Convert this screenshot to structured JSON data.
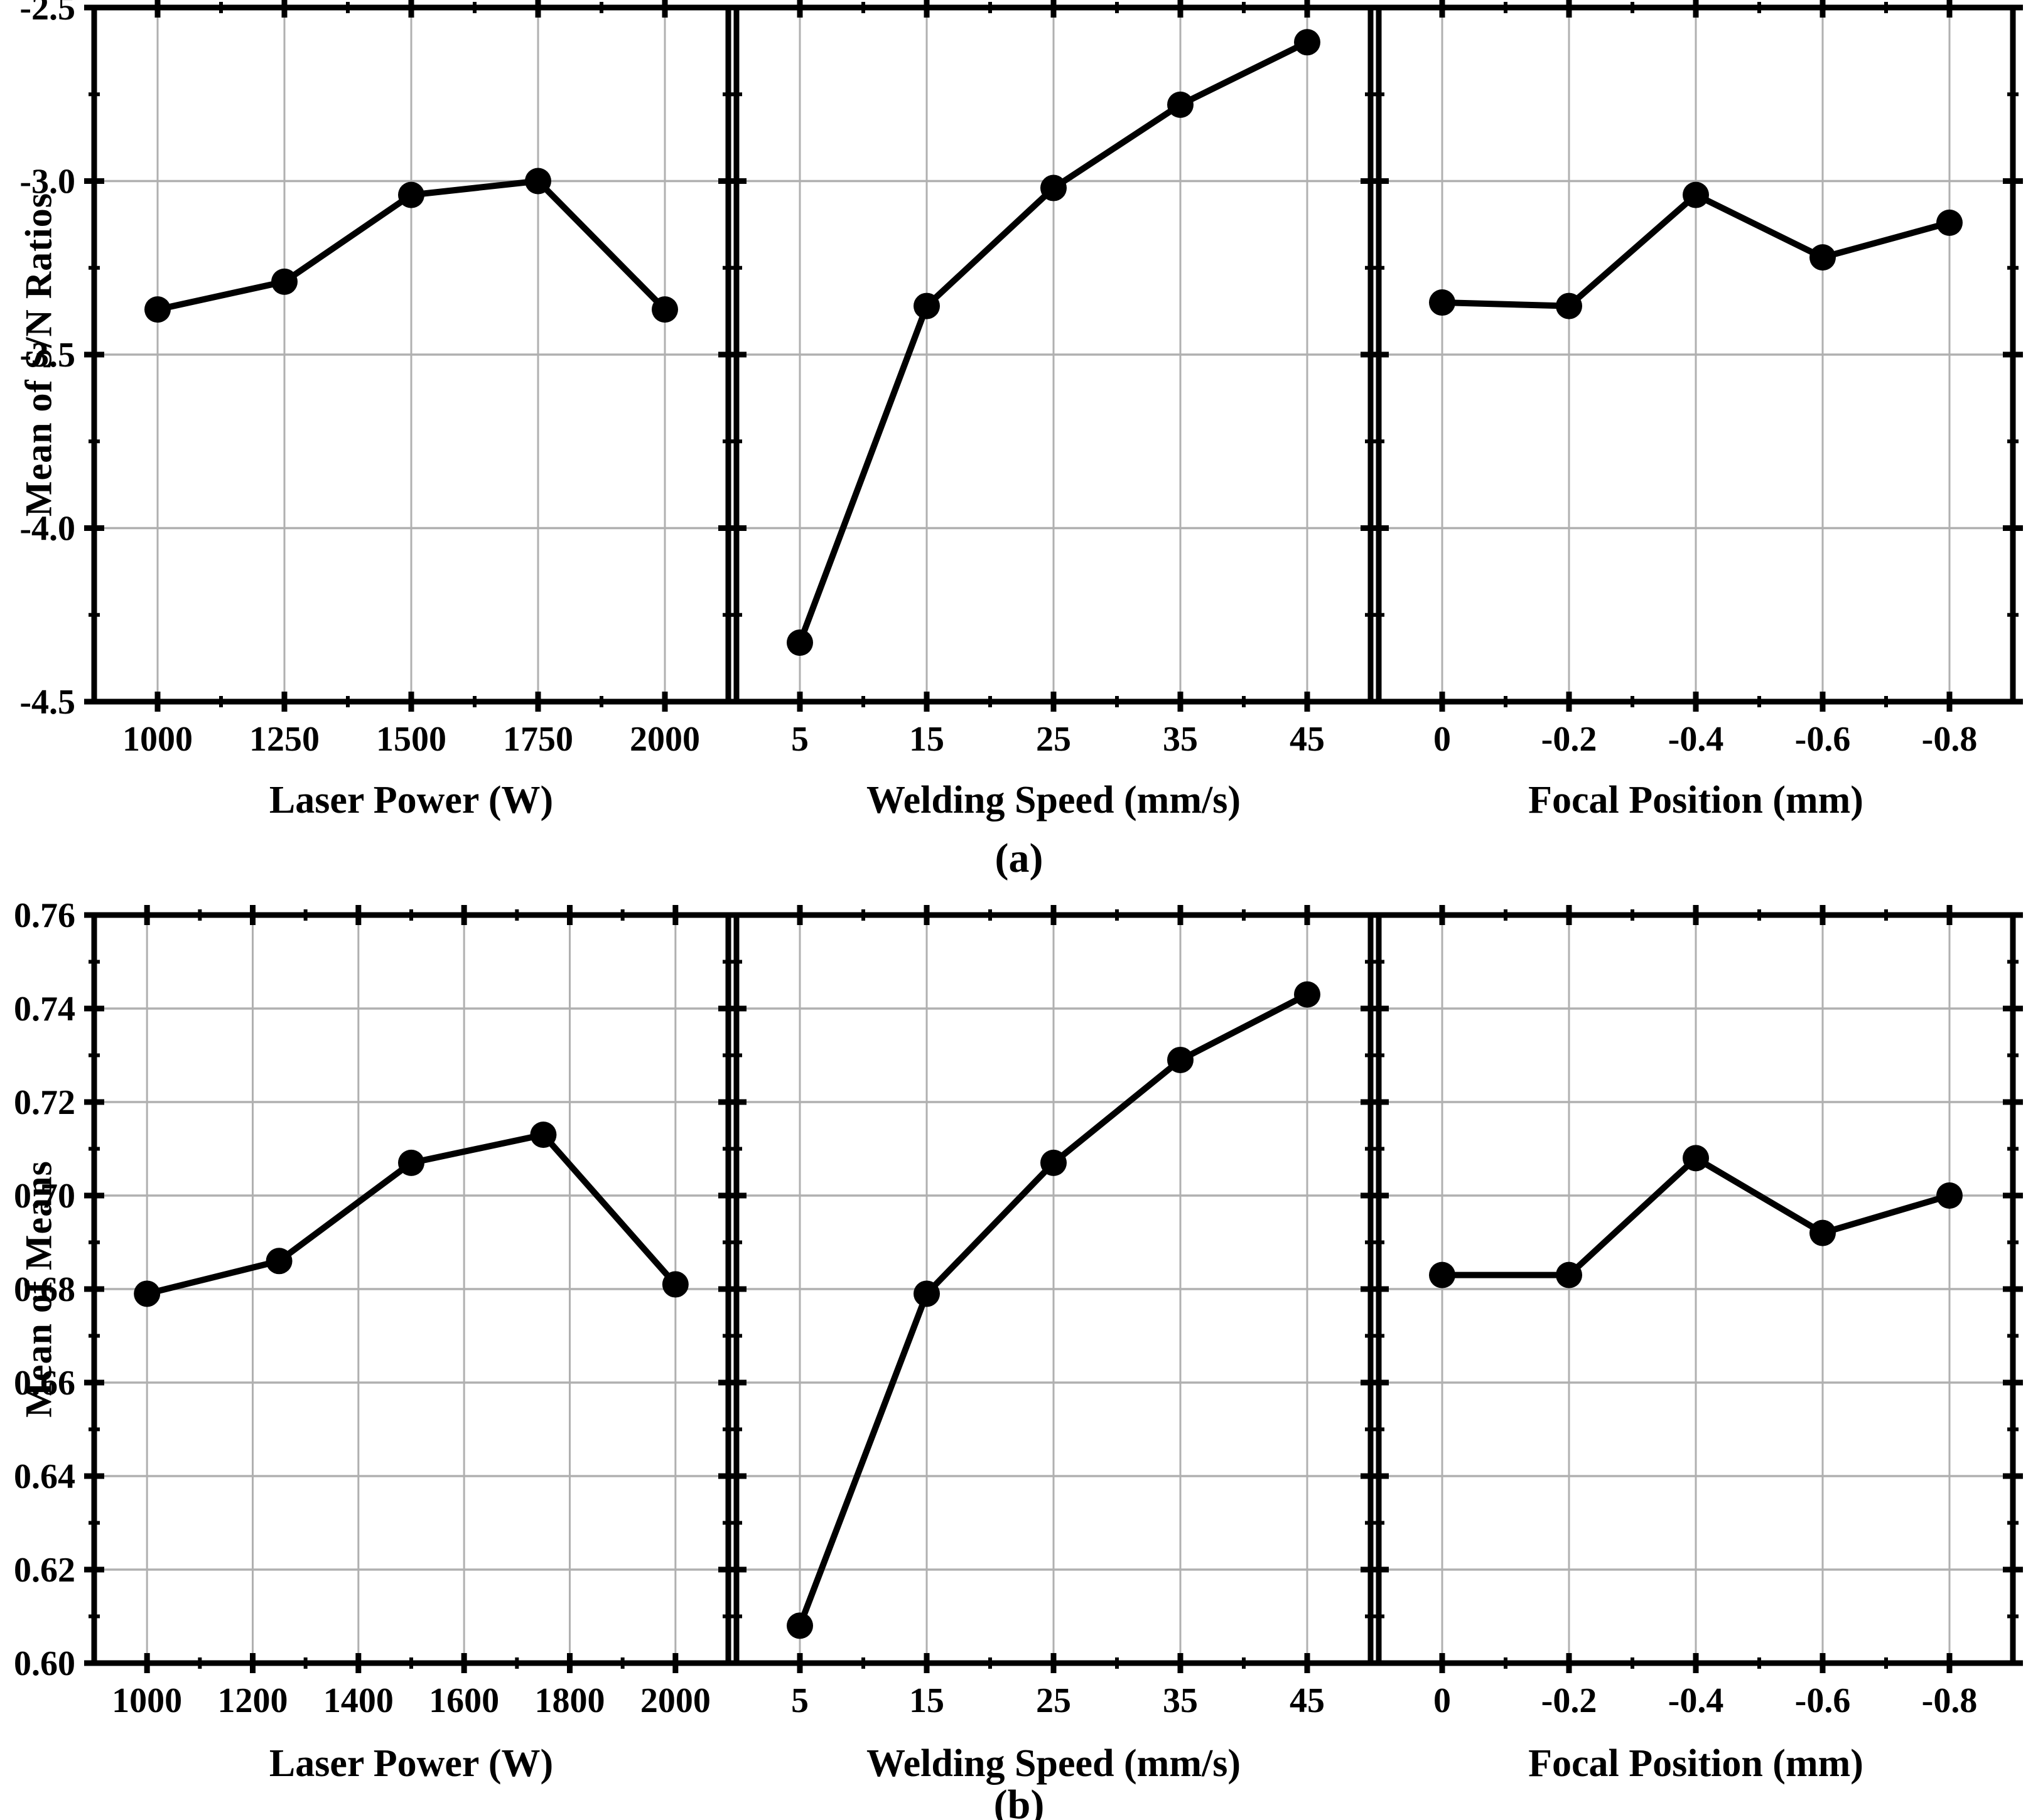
{
  "figure": {
    "background": "#ffffff",
    "data_color": "#000000",
    "grid_color": "#b0b0b0",
    "marker": "filled-circle",
    "font_style": "bold serif"
  },
  "chart_data": [
    {
      "type": "line",
      "figure_label": "a",
      "caption": {
        "open": "(",
        "letter": "a",
        "close": ")"
      },
      "ylabel": "Mean of S/N Ratios",
      "ylim": [
        -4.5,
        -2.5
      ],
      "grid": "major gridlines on, light gray",
      "legend": "none",
      "yticks": {
        "values": [
          -2.5,
          -3.0,
          -3.5,
          -4.0,
          -4.5
        ],
        "labels": [
          "-2.5",
          "-3.0",
          "-3.5",
          "-4.0",
          "-4.5"
        ]
      },
      "yminors": [
        -2.75,
        -3.25,
        -3.75,
        -4.25
      ],
      "panels": [
        {
          "xlabel": "Laser Power (W)",
          "xlim": [
            875,
            2125
          ],
          "xticks": {
            "values": [
              1000,
              1250,
              1500,
              1750,
              2000
            ],
            "labels": [
              "1000",
              "1250",
              "1500",
              "1750",
              "2000"
            ]
          },
          "xminors": [
            1125,
            1375,
            1625,
            1875
          ],
          "x": [
            1000,
            1250,
            1500,
            1750,
            2000
          ],
          "y": [
            -3.37,
            -3.29,
            -3.04,
            -3.0,
            -3.37
          ]
        },
        {
          "xlabel": "Welding Speed (mm/s)",
          "xlim": [
            0,
            50
          ],
          "xticks": {
            "values": [
              5,
              15,
              25,
              35,
              45
            ],
            "labels": [
              "5",
              "15",
              "25",
              "35",
              "45"
            ]
          },
          "xminors": [
            10,
            20,
            30,
            40
          ],
          "x": [
            5,
            15,
            25,
            35,
            45
          ],
          "y": [
            -4.33,
            -3.36,
            -3.02,
            -2.78,
            -2.6
          ]
        },
        {
          "xlabel": "Focal Position (mm)",
          "xlim": [
            0.1,
            -0.9
          ],
          "xticks": {
            "values": [
              0,
              -0.2,
              -0.4,
              -0.6,
              -0.8
            ],
            "labels": [
              "0",
              "-0.2",
              "-0.4",
              "-0.6",
              "-0.8"
            ]
          },
          "xminors": [
            -0.1,
            -0.3,
            -0.5,
            -0.7
          ],
          "x": [
            0,
            -0.2,
            -0.4,
            -0.6,
            -0.8
          ],
          "y": [
            -3.35,
            -3.36,
            -3.04,
            -3.22,
            -3.12
          ]
        }
      ]
    },
    {
      "type": "line",
      "figure_label": "b",
      "caption": {
        "open": "(",
        "letter": "b",
        "close": ")"
      },
      "ylabel": "Mean of Means",
      "ylim": [
        0.6,
        0.76
      ],
      "grid": "major gridlines on, light gray",
      "legend": "none",
      "yticks": {
        "values": [
          0.76,
          0.74,
          0.72,
          0.7,
          0.68,
          0.66,
          0.64,
          0.62,
          0.6
        ],
        "labels": [
          "0.76",
          "0.74",
          "0.72",
          "0.70",
          "0.68",
          "0.66",
          "0.64",
          "0.62",
          "0.60"
        ]
      },
      "yminors": [
        0.61,
        0.63,
        0.65,
        0.67,
        0.69,
        0.71,
        0.73,
        0.75
      ],
      "panels": [
        {
          "xlabel": "Laser Power (W)",
          "xlim": [
            900,
            2100
          ],
          "xticks": {
            "values": [
              1000,
              1200,
              1400,
              1600,
              1800,
              2000
            ],
            "labels": [
              "1000",
              "1200",
              "1400",
              "1600",
              "1800",
              "2000"
            ]
          },
          "xminors": [
            1100,
            1300,
            1500,
            1700,
            1900
          ],
          "x": [
            1000,
            1250,
            1500,
            1750,
            2000
          ],
          "y": [
            0.679,
            0.686,
            0.707,
            0.713,
            0.681
          ]
        },
        {
          "xlabel": "Welding Speed (mm/s)",
          "xlim": [
            0,
            50
          ],
          "xticks": {
            "values": [
              5,
              15,
              25,
              35,
              45
            ],
            "labels": [
              "5",
              "15",
              "25",
              "35",
              "45"
            ]
          },
          "xminors": [
            10,
            20,
            30,
            40
          ],
          "x": [
            5,
            15,
            25,
            35,
            45
          ],
          "y": [
            0.608,
            0.679,
            0.707,
            0.729,
            0.743
          ]
        },
        {
          "xlabel": "Focal Position (mm)",
          "xlim": [
            0.1,
            -0.9
          ],
          "xticks": {
            "values": [
              0,
              -0.2,
              -0.4,
              -0.6,
              -0.8
            ],
            "labels": [
              "0",
              "-0.2",
              "-0.4",
              "-0.6",
              "-0.8"
            ]
          },
          "xminors": [
            -0.1,
            -0.3,
            -0.5,
            -0.7
          ],
          "x": [
            0,
            -0.2,
            -0.4,
            -0.6,
            -0.8
          ],
          "y": [
            0.683,
            0.683,
            0.708,
            0.692,
            0.7
          ]
        }
      ]
    }
  ]
}
